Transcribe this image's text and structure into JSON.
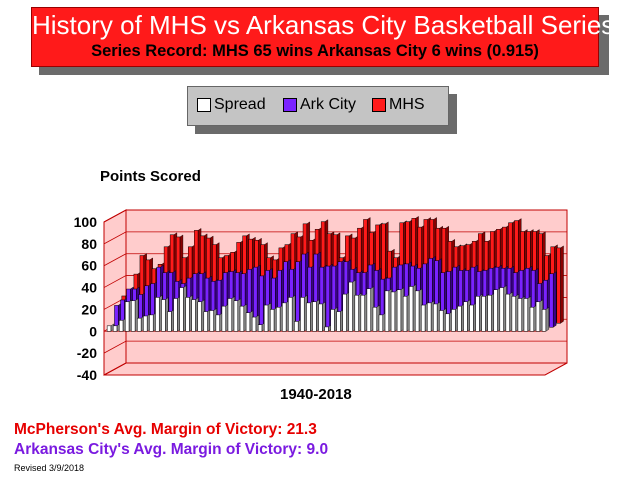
{
  "title": "History of MHS vs Arkansas City Basketball Series",
  "subtitle": "Series Record:  MHS 65 wins  Arkansas City 6 wins (0.915)",
  "legend": [
    {
      "label": "Spread",
      "color": "#ffffff"
    },
    {
      "label": "Ark City",
      "color": "#7a22ff"
    },
    {
      "label": "MHS",
      "color": "#ff1a1a"
    }
  ],
  "y_axis_title": "Points Scored",
  "x_axis_title": "1940-2018",
  "mhs_margin": "McPherson's Avg. Margin of Victory: 21.3",
  "ark_margin": "Arkansas City's Avg. Margin of Victory: 9.0",
  "revised": "Revised 3/9/2018",
  "colors": {
    "mhs": "#ff1a1a",
    "ark": "#7a22ff",
    "spread": "#ffffff",
    "floor": "#ffcccc",
    "title_bg": "#ff1a1a"
  },
  "chart_data": {
    "type": "bar",
    "title": "History of MHS vs Arkansas City Basketball Series",
    "xlabel": "1940-2018",
    "ylabel": "Points Scored",
    "ylim": [
      -40,
      100
    ],
    "yticks": [
      -40,
      -20,
      0,
      20,
      40,
      60,
      80,
      100
    ],
    "grid": true,
    "legend_position": "top-center",
    "series": [
      {
        "name": "MHS",
        "values": [
          25,
          30,
          45,
          62,
          58,
          50,
          54,
          70,
          81,
          79,
          60,
          70,
          85,
          80,
          78,
          72,
          60,
          62,
          65,
          74,
          80,
          77,
          76,
          72,
          60,
          58,
          69,
          72,
          82,
          79,
          91,
          76,
          86,
          93,
          82,
          81,
          60,
          80,
          78,
          87,
          95,
          83,
          90,
          91,
          66,
          60,
          92,
          93,
          96,
          88,
          95,
          95,
          87,
          87,
          75,
          70,
          71,
          72,
          75,
          82,
          75,
          84,
          86,
          88,
          92,
          94,
          84,
          84,
          84,
          82,
          62,
          70,
          69
        ]
      },
      {
        "name": "Ark City",
        "values": [
          20,
          25,
          35,
          35,
          30,
          38,
          40,
          55,
          50,
          50,
          42,
          40,
          45,
          49,
          49,
          45,
          42,
          43,
          50,
          51,
          50,
          49,
          53,
          55,
          47,
          52,
          45,
          52,
          60,
          53,
          60,
          67,
          55,
          67,
          55,
          56,
          56,
          60,
          60,
          53,
          50,
          50,
          57,
          52,
          44,
          45,
          55,
          57,
          58,
          56,
          54,
          58,
          63,
          61,
          50,
          51,
          55,
          52,
          52,
          55,
          51,
          52,
          54,
          55,
          54,
          54,
          50,
          52,
          54,
          52,
          40,
          43,
          49
        ]
      },
      {
        "name": "Spread",
        "values": [
          5,
          5,
          10,
          27,
          28,
          12,
          14,
          15,
          31,
          29,
          18,
          30,
          40,
          31,
          29,
          27,
          18,
          19,
          15,
          23,
          30,
          28,
          23,
          17,
          13,
          6,
          24,
          20,
          22,
          26,
          31,
          9,
          31,
          26,
          27,
          25,
          4,
          20,
          18,
          34,
          45,
          33,
          33,
          39,
          22,
          15,
          37,
          36,
          38,
          32,
          41,
          37,
          24,
          26,
          25,
          19,
          16,
          20,
          23,
          27,
          24,
          32,
          32,
          33,
          38,
          40,
          34,
          32,
          30,
          30,
          22,
          27,
          20
        ]
      }
    ]
  }
}
